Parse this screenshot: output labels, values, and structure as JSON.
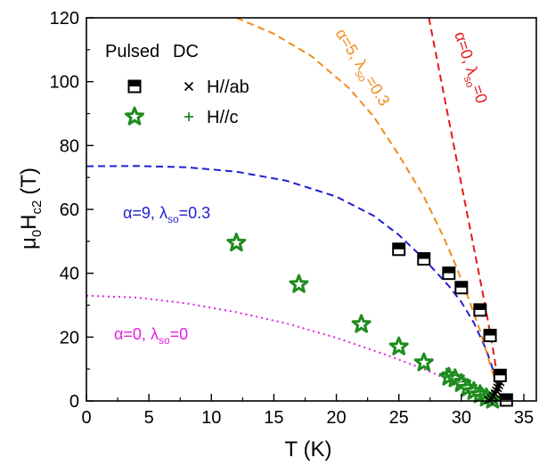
{
  "chart_data": {
    "type": "scatter",
    "xlim": [
      0,
      36
    ],
    "ylim": [
      0,
      120
    ],
    "xticks": [
      0,
      5,
      10,
      15,
      20,
      25,
      30,
      35
    ],
    "yticks": [
      0,
      20,
      40,
      60,
      80,
      100,
      120
    ],
    "x_minor_step": 2.5,
    "y_minor_step": 10,
    "xlabel": {
      "main": "T",
      "unit": "(K)"
    },
    "ylabel": {
      "mu": "μ",
      "mu_sub": "0",
      "h": "H",
      "h_sub": "c2",
      "unit": "(T)"
    },
    "legend": {
      "placement": "top-left",
      "col_headers": [
        "Pulsed",
        "DC"
      ],
      "rows": [
        {
          "label": "H//ab",
          "pulsed_marker": "half-filled-square",
          "dc_marker": "cross"
        },
        {
          "label": "H//c",
          "pulsed_marker": "star",
          "dc_marker": "plus"
        }
      ]
    },
    "colors": {
      "hab": "#000000",
      "hc": "#1e8c1e",
      "curve_a9": "#1f1fd0",
      "curve_a5": "#f28a1c",
      "curve_a0_dash": "#e41a1a",
      "curve_a0_dot": "#e31fe3"
    },
    "series": [
      {
        "name": "H//ab",
        "method": "Pulsed",
        "marker": "half-filled-square",
        "points": [
          [
            25,
            47.5
          ],
          [
            27,
            44.5
          ],
          [
            29,
            40
          ],
          [
            30,
            35.5
          ],
          [
            31.5,
            28.5
          ],
          [
            32.3,
            20.5
          ],
          [
            33.1,
            8
          ],
          [
            33.6,
            0.3
          ]
        ]
      },
      {
        "name": "H//ab",
        "method": "DC",
        "marker": "cross",
        "points": [
          [
            32.2,
            0.3
          ],
          [
            32.4,
            0.8
          ],
          [
            32.55,
            1.5
          ],
          [
            32.7,
            2.3
          ],
          [
            32.8,
            3.2
          ],
          [
            32.9,
            4.1
          ],
          [
            33.0,
            5.0
          ],
          [
            33.1,
            6.0
          ]
        ]
      },
      {
        "name": "H//c",
        "method": "Pulsed",
        "marker": "star",
        "points": [
          [
            12,
            49.5
          ],
          [
            17,
            36.5
          ],
          [
            22,
            24
          ],
          [
            25,
            17
          ],
          [
            27,
            12
          ],
          [
            29,
            7.5
          ],
          [
            29.5,
            7
          ],
          [
            30,
            5.5
          ],
          [
            30.5,
            4
          ],
          [
            31,
            3
          ],
          [
            31.5,
            2
          ],
          [
            32,
            1
          ],
          [
            32.5,
            0.3
          ]
        ]
      },
      {
        "name": "H//c",
        "method": "DC",
        "marker": "plus",
        "points": [
          [
            28.8,
            9
          ],
          [
            29.3,
            8
          ],
          [
            29.8,
            7
          ],
          [
            30.3,
            6
          ],
          [
            30.7,
            5
          ],
          [
            31.1,
            4
          ],
          [
            31.5,
            3
          ],
          [
            31.8,
            2.2
          ],
          [
            32.1,
            1.5
          ],
          [
            32.4,
            0.8
          ],
          [
            32.6,
            0.3
          ]
        ]
      }
    ],
    "curves": [
      {
        "key": "a9",
        "label": {
          "alpha_eq": "α=9,",
          "lambda": "λ",
          "lambda_sub": "so",
          "lambda_val": "=0.3"
        },
        "style": "dashed",
        "points": [
          [
            0,
            73.5
          ],
          [
            4,
            73.6
          ],
          [
            8,
            73.2
          ],
          [
            12,
            71.8
          ],
          [
            16,
            69
          ],
          [
            20,
            64
          ],
          [
            23,
            58
          ],
          [
            25,
            52
          ],
          [
            27,
            44.5
          ],
          [
            29,
            36
          ],
          [
            30,
            31
          ],
          [
            31,
            24.5
          ],
          [
            32,
            16
          ],
          [
            32.6,
            9
          ],
          [
            33,
            3
          ],
          [
            33.2,
            0
          ]
        ]
      },
      {
        "key": "a5",
        "label": {
          "alpha_eq": "α=5,",
          "lambda": "λ",
          "lambda_sub": "so",
          "lambda_val": "=0.3"
        },
        "style": "dashed",
        "points": [
          [
            12,
            120
          ],
          [
            15,
            115
          ],
          [
            18,
            108
          ],
          [
            21,
            98
          ],
          [
            23,
            89
          ],
          [
            25,
            77
          ],
          [
            27,
            64
          ],
          [
            28.5,
            52
          ],
          [
            29.5,
            43
          ],
          [
            30.5,
            33
          ],
          [
            31.5,
            22
          ],
          [
            32.5,
            9
          ],
          [
            33.2,
            0
          ]
        ]
      },
      {
        "key": "a0_dash",
        "label": {
          "alpha_eq": "α=0,",
          "lambda": "λ",
          "lambda_sub": "so",
          "lambda_val": "=0"
        },
        "style": "dashed",
        "points": [
          [
            27.4,
            120
          ],
          [
            28,
            108
          ],
          [
            28.8,
            92
          ],
          [
            29.6,
            76
          ],
          [
            30.4,
            60
          ],
          [
            31.2,
            44
          ],
          [
            31.9,
            30
          ],
          [
            32.5,
            17
          ],
          [
            33.2,
            0
          ]
        ]
      },
      {
        "key": "a0_dot",
        "label": {
          "alpha_eq": "α=0,",
          "lambda": "λ",
          "lambda_sub": "so",
          "lambda_val": "=0"
        },
        "style": "dotted",
        "points": [
          [
            0,
            33
          ],
          [
            4,
            32.4
          ],
          [
            8,
            30.6
          ],
          [
            12,
            27.8
          ],
          [
            16,
            24.3
          ],
          [
            20,
            19.8
          ],
          [
            24,
            14.4
          ],
          [
            27,
            10
          ],
          [
            29,
            6.6
          ],
          [
            30.5,
            4
          ],
          [
            31.5,
            2.3
          ],
          [
            32.3,
            0.9
          ],
          [
            33,
            0
          ]
        ]
      }
    ]
  }
}
